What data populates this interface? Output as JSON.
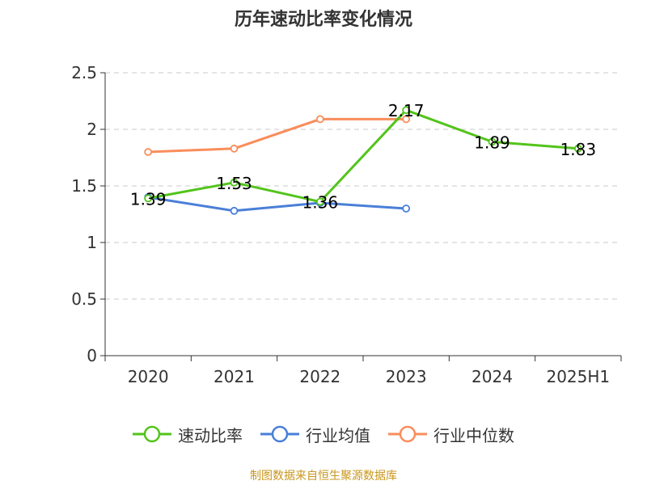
{
  "chart_data": {
    "type": "line",
    "title": "历年速动比率变化情况",
    "categories": [
      "2020",
      "2021",
      "2022",
      "2023",
      "2024",
      "2025H1"
    ],
    "ylim": [
      0,
      2.5
    ],
    "yticks": [
      "0",
      "0.5",
      "1",
      "1.5",
      "2",
      "2.5"
    ],
    "grid": true,
    "legend_position": "bottom",
    "series": [
      {
        "name": "速动比率",
        "color": "#52c41a",
        "values": [
          1.39,
          1.53,
          1.36,
          2.17,
          1.89,
          1.83
        ],
        "labels": [
          "1.39",
          "1.53",
          "1.36",
          "2.17",
          "1.89",
          "1.83"
        ]
      },
      {
        "name": "行业均值",
        "color": "#4a7fd8",
        "values": [
          1.4,
          1.28,
          1.35,
          1.3,
          null,
          null
        ]
      },
      {
        "name": "行业中位数",
        "color": "#f98d5b",
        "values": [
          1.8,
          1.83,
          2.09,
          2.09,
          null,
          null
        ]
      }
    ]
  },
  "source": "制图数据来自恒生聚源数据库"
}
